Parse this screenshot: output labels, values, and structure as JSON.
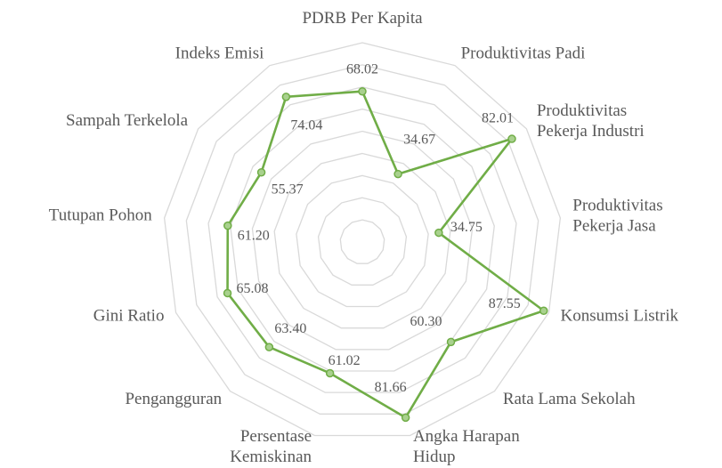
{
  "chart_data": {
    "type": "radar",
    "categories": [
      "PDRB Per Kapita",
      "Produktivitas Padi",
      "Produktivitas Pekerja Industri",
      "Produktivitas Pekerja Jasa",
      "Konsumsi Listrik",
      "Rata Lama Sekolah",
      "Angka Harapan Hidup",
      "Persentase Kemiskinan",
      "Pengangguran",
      "Gini Ratio",
      "Tutupan Pohon",
      "Sampah Terkelola",
      "Indeks Emisi"
    ],
    "series": [
      {
        "color": "#70ad47",
        "values": [
          68.02,
          34.67,
          82.01,
          34.75,
          87.55,
          60.3,
          81.66,
          61.02,
          63.4,
          65.08,
          61.2,
          55.37,
          74.04
        ]
      }
    ],
    "rlim": [
      0,
      90
    ],
    "rticks": [
      0,
      10,
      20,
      30,
      40,
      50,
      60,
      70,
      80,
      90
    ],
    "grid": true
  }
}
